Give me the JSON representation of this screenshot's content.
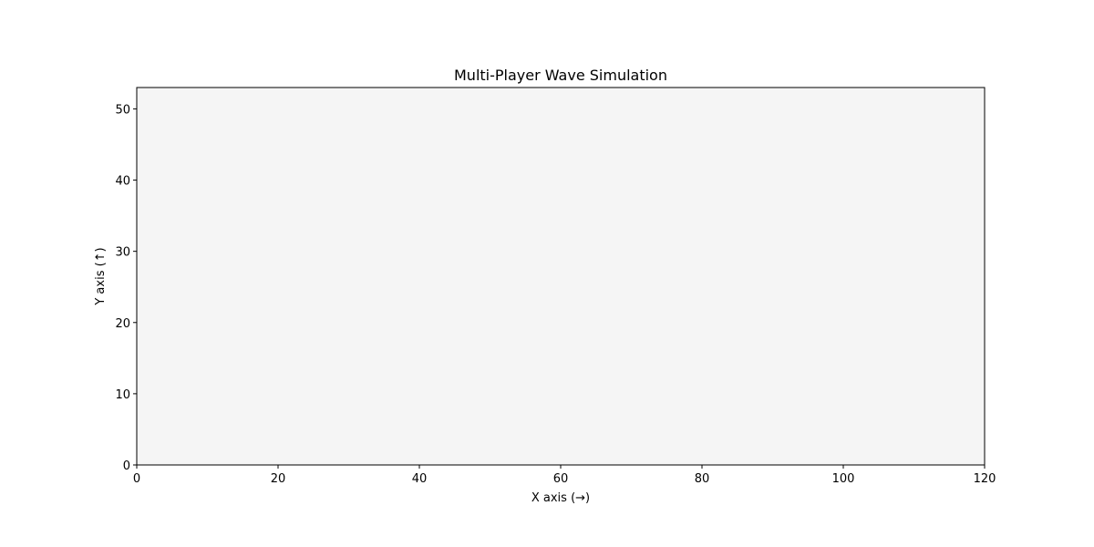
{
  "chart_data": {
    "type": "line",
    "title": "Multi-Player Wave Simulation",
    "xlabel": "X axis (→)",
    "ylabel": "Y axis (↑)",
    "xlim": [
      0,
      120
    ],
    "ylim": [
      0,
      53
    ],
    "x_ticks": [
      0,
      20,
      40,
      60,
      80,
      100,
      120
    ],
    "y_ticks": [
      0,
      10,
      20,
      30,
      40,
      50
    ],
    "grid": false,
    "series": []
  },
  "colors": {
    "plot_background": "#f5f5f5",
    "axis": "#000000",
    "page_background": "#ffffff"
  }
}
